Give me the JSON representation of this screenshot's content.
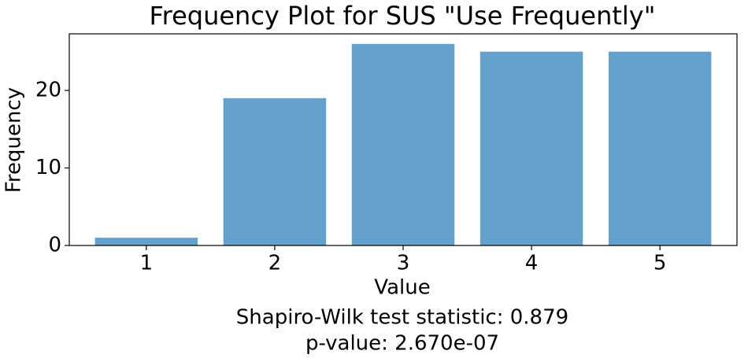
{
  "chart_data": {
    "type": "bar",
    "title": "Frequency Plot for SUS \"Use Frequently\"",
    "x_label": "Value",
    "y_label": "Frequency",
    "x": [
      1,
      2,
      3,
      4,
      5
    ],
    "values": [
      1,
      19,
      26,
      25,
      25
    ],
    "color": "#63a0cb",
    "xlim": [
      0.4,
      5.6
    ],
    "xticks": [
      1,
      2,
      3,
      4,
      5
    ],
    "ylim": [
      0,
      27.3
    ],
    "yticks": [
      0,
      10,
      20
    ],
    "grid": false,
    "annotations": [
      "Shapiro-Wilk test statistic: 0.879",
      "p-value: 2.670e-07"
    ]
  }
}
